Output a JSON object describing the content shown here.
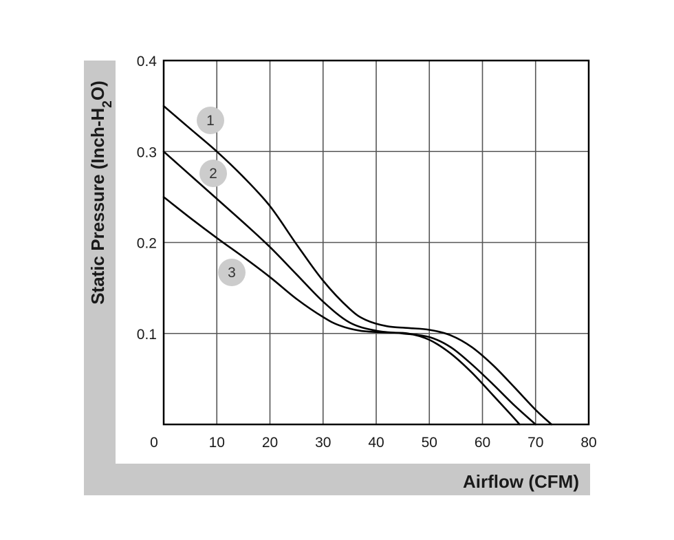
{
  "chart_data": {
    "type": "line",
    "xlabel": "Airflow (CFM)",
    "ylabel": {
      "prefix": "Static Pressure (Inch-H",
      "subscript": "2",
      "suffix": "O)"
    },
    "xlim": [
      0,
      80
    ],
    "ylim": [
      0,
      0.4
    ],
    "x_ticks": [
      "0",
      "10",
      "20",
      "30",
      "40",
      "50",
      "60",
      "70",
      "80"
    ],
    "y_ticks": [
      "0.1",
      "0.2",
      "0.3",
      "0.4"
    ],
    "grid": true,
    "colors": {
      "line": "#000000",
      "grid": "#555555",
      "frame": "#c8c8c8",
      "marker": "#cccccc"
    },
    "series": [
      {
        "name": "1",
        "points": [
          [
            0,
            0.35
          ],
          [
            5,
            0.325
          ],
          [
            10,
            0.3
          ],
          [
            15,
            0.272
          ],
          [
            20,
            0.24
          ],
          [
            25,
            0.198
          ],
          [
            30,
            0.158
          ],
          [
            35,
            0.127
          ],
          [
            38,
            0.115
          ],
          [
            42,
            0.108
          ],
          [
            46,
            0.106
          ],
          [
            50,
            0.104
          ],
          [
            54,
            0.098
          ],
          [
            58,
            0.085
          ],
          [
            62,
            0.065
          ],
          [
            66,
            0.041
          ],
          [
            70,
            0.016
          ],
          [
            73,
            0.0
          ]
        ]
      },
      {
        "name": "2",
        "points": [
          [
            0,
            0.3
          ],
          [
            5,
            0.274
          ],
          [
            10,
            0.248
          ],
          [
            15,
            0.222
          ],
          [
            20,
            0.195
          ],
          [
            25,
            0.165
          ],
          [
            30,
            0.135
          ],
          [
            35,
            0.112
          ],
          [
            40,
            0.103
          ],
          [
            45,
            0.1
          ],
          [
            50,
            0.096
          ],
          [
            54,
            0.085
          ],
          [
            58,
            0.066
          ],
          [
            62,
            0.044
          ],
          [
            66,
            0.021
          ],
          [
            70,
            0.0
          ]
        ]
      },
      {
        "name": "3",
        "points": [
          [
            0,
            0.25
          ],
          [
            5,
            0.227
          ],
          [
            10,
            0.205
          ],
          [
            15,
            0.184
          ],
          [
            20,
            0.162
          ],
          [
            25,
            0.138
          ],
          [
            30,
            0.118
          ],
          [
            33,
            0.109
          ],
          [
            37,
            0.103
          ],
          [
            42,
            0.101
          ],
          [
            46,
            0.1
          ],
          [
            50,
            0.093
          ],
          [
            54,
            0.078
          ],
          [
            58,
            0.057
          ],
          [
            62,
            0.032
          ],
          [
            65,
            0.013
          ],
          [
            67,
            0.0
          ]
        ]
      }
    ],
    "series_markers": [
      "1",
      "2",
      "3"
    ]
  }
}
